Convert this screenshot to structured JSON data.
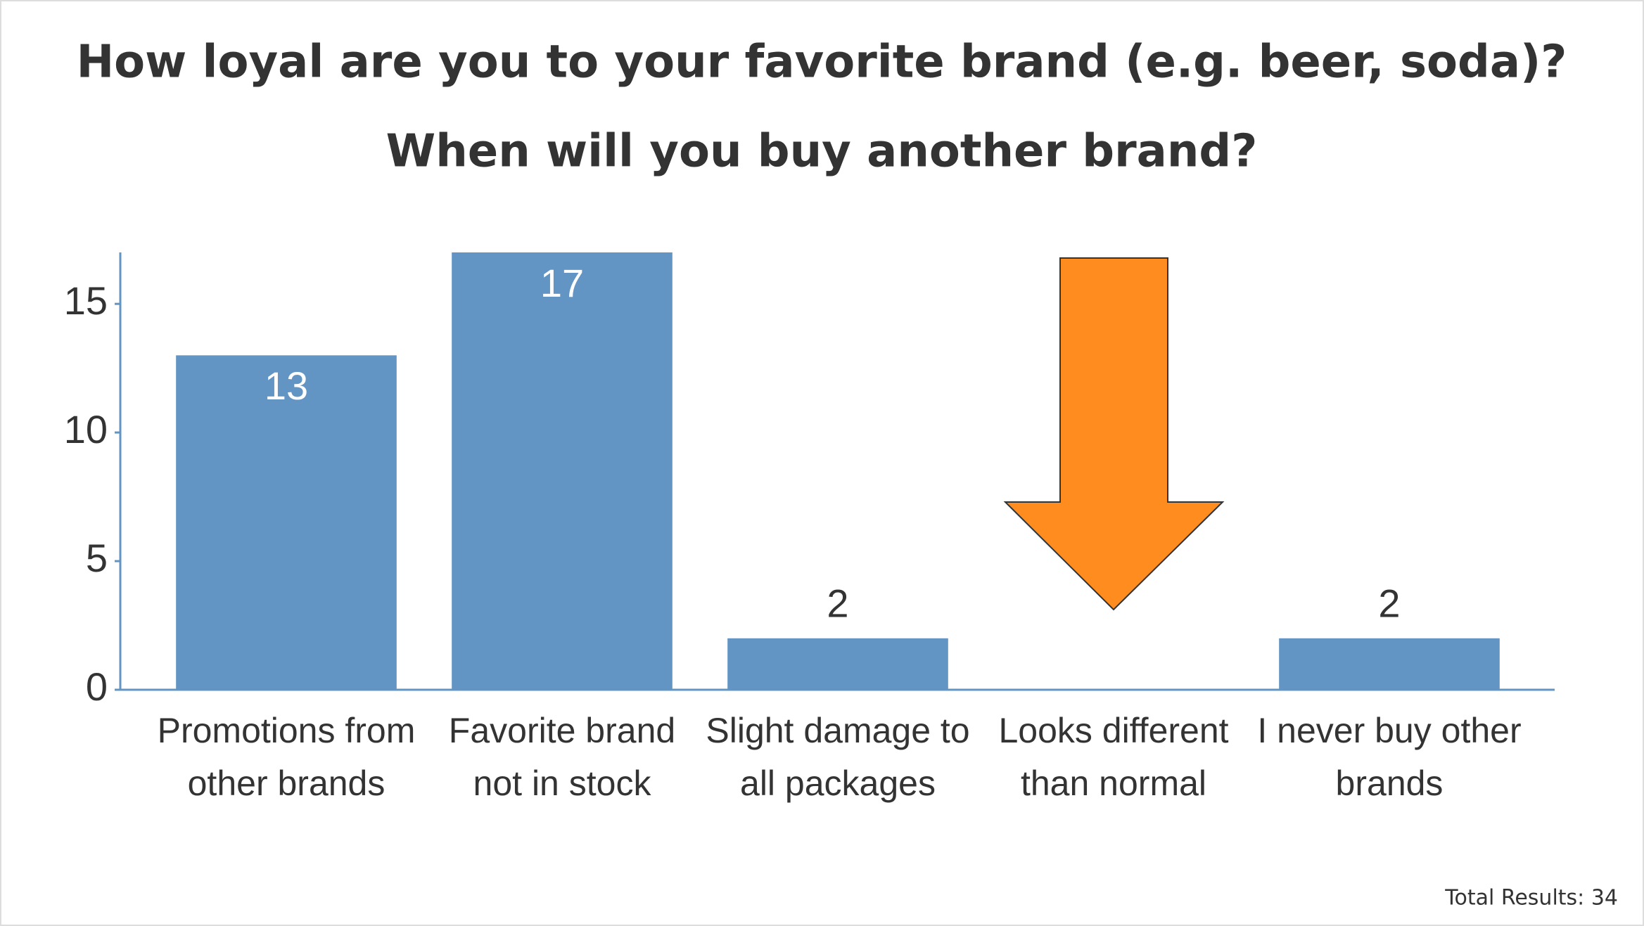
{
  "chart_data": {
    "type": "bar",
    "title": "How loyal are you to your favorite brand (e.g. beer, soda)?",
    "subtitle": "When will you buy another brand?",
    "categories": [
      "Promotions from other brands",
      "Favorite brand not in stock",
      "Slight damage to all packages",
      "Looks different than normal",
      "I never buy other brands"
    ],
    "values": [
      13,
      17,
      2,
      0,
      2
    ],
    "color": "#6294c4",
    "ylim": [
      0,
      17
    ],
    "yticks": [
      0,
      5,
      10,
      15
    ],
    "footer": "Total Results: 34"
  }
}
